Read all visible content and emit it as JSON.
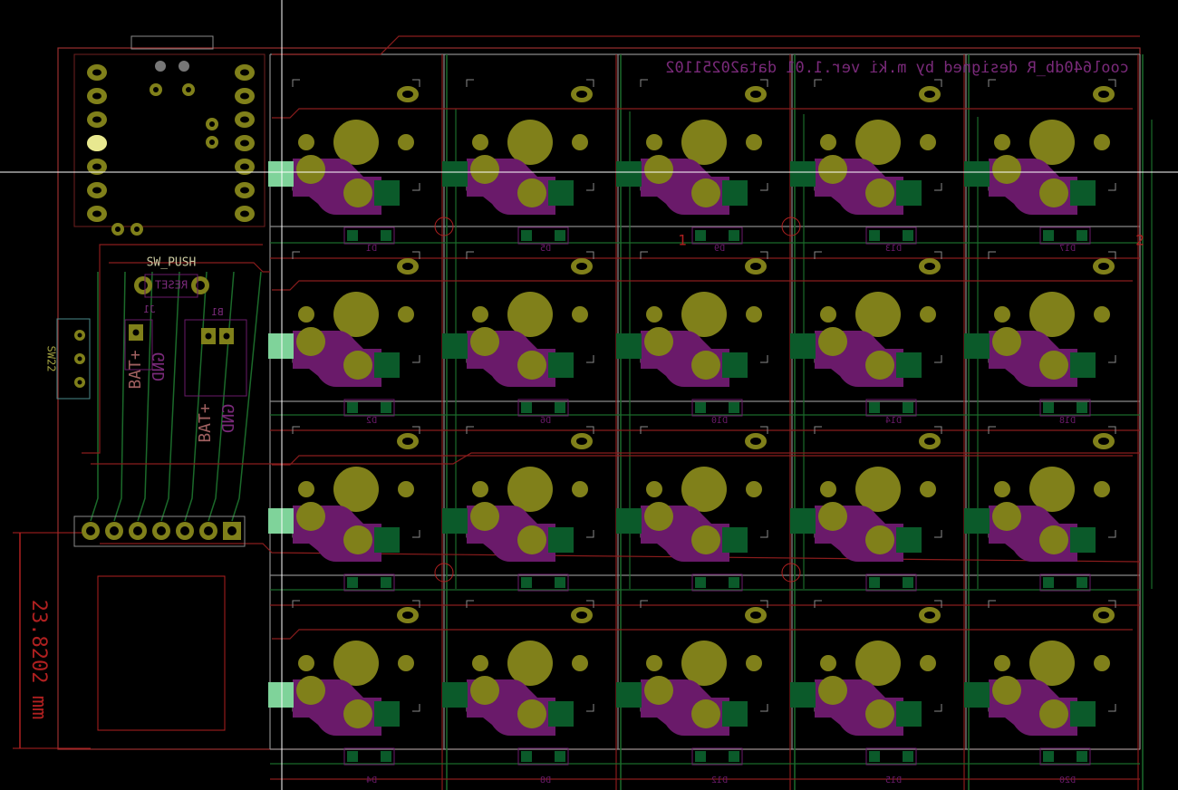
{
  "board_title": "cool640db_R designed by m.ki ver.1.01 data20251102",
  "dimension": "23.8202 mm",
  "labels": {
    "sw_push": "SW_PUSH",
    "reset": "RESET",
    "sw22": "SW22",
    "j1": "J1",
    "b1": "B1",
    "bat_plus": "BAT+",
    "gnd": "GND",
    "net_1": "1",
    "net_2": "2"
  },
  "diodes": [
    [
      "D1",
      "D5",
      "D9",
      "D13",
      "D17"
    ],
    [
      "D2",
      "D6",
      "D10",
      "D14",
      "D18"
    ],
    [
      "D4",
      "D8",
      "D12",
      "D15",
      "D20"
    ]
  ]
}
